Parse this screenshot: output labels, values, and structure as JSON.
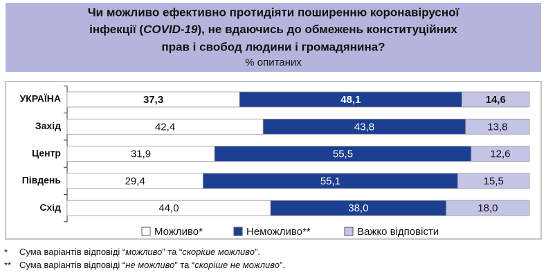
{
  "chart_data": {
    "type": "stacked-bar-horizontal",
    "title": [
      "Чи можливо ефективно протидіяти поширенню коронавірусної",
      "інфекції (",
      "COVID-19",
      "), не вдаючись до обмежень конституційних",
      "прав і свобод людини і громадянина?"
    ],
    "subtitle": "% опитаних",
    "categories": [
      "УКРАЇНА",
      "Захід",
      "Центр",
      "Південь",
      "Схід"
    ],
    "xlim": [
      0,
      100
    ],
    "series": [
      {
        "name": "Можливо*",
        "color": "#ffffff",
        "values": [
          37.3,
          42.4,
          31.9,
          29.4,
          44.0
        ],
        "value_labels": [
          "37,3",
          "42,4",
          "31,9",
          "29,4",
          "44,0"
        ]
      },
      {
        "name": "Неможливо**",
        "color": "#1c3f92",
        "values": [
          48.1,
          43.8,
          55.5,
          55.1,
          38.0
        ],
        "value_labels": [
          "48,1",
          "43,8",
          "55,5",
          "55,1",
          "38,0"
        ]
      },
      {
        "name": "Важко відповісти",
        "color": "#c4c4e6",
        "values": [
          14.6,
          13.8,
          12.6,
          15.5,
          18.0
        ],
        "value_labels": [
          "14,6",
          "13,8",
          "12,6",
          "15,5",
          "18,0"
        ]
      }
    ],
    "footnotes": [
      {
        "mark": "*",
        "parts": [
          "Сума варіантів відповіді “",
          "можливо",
          "” та “",
          "скоріше можливо",
          "”."
        ]
      },
      {
        "mark": "**",
        "parts": [
          "Сума варіантів відповіді “",
          "не можливо",
          "” та “",
          "скоріше не можливо",
          "”."
        ]
      }
    ]
  }
}
